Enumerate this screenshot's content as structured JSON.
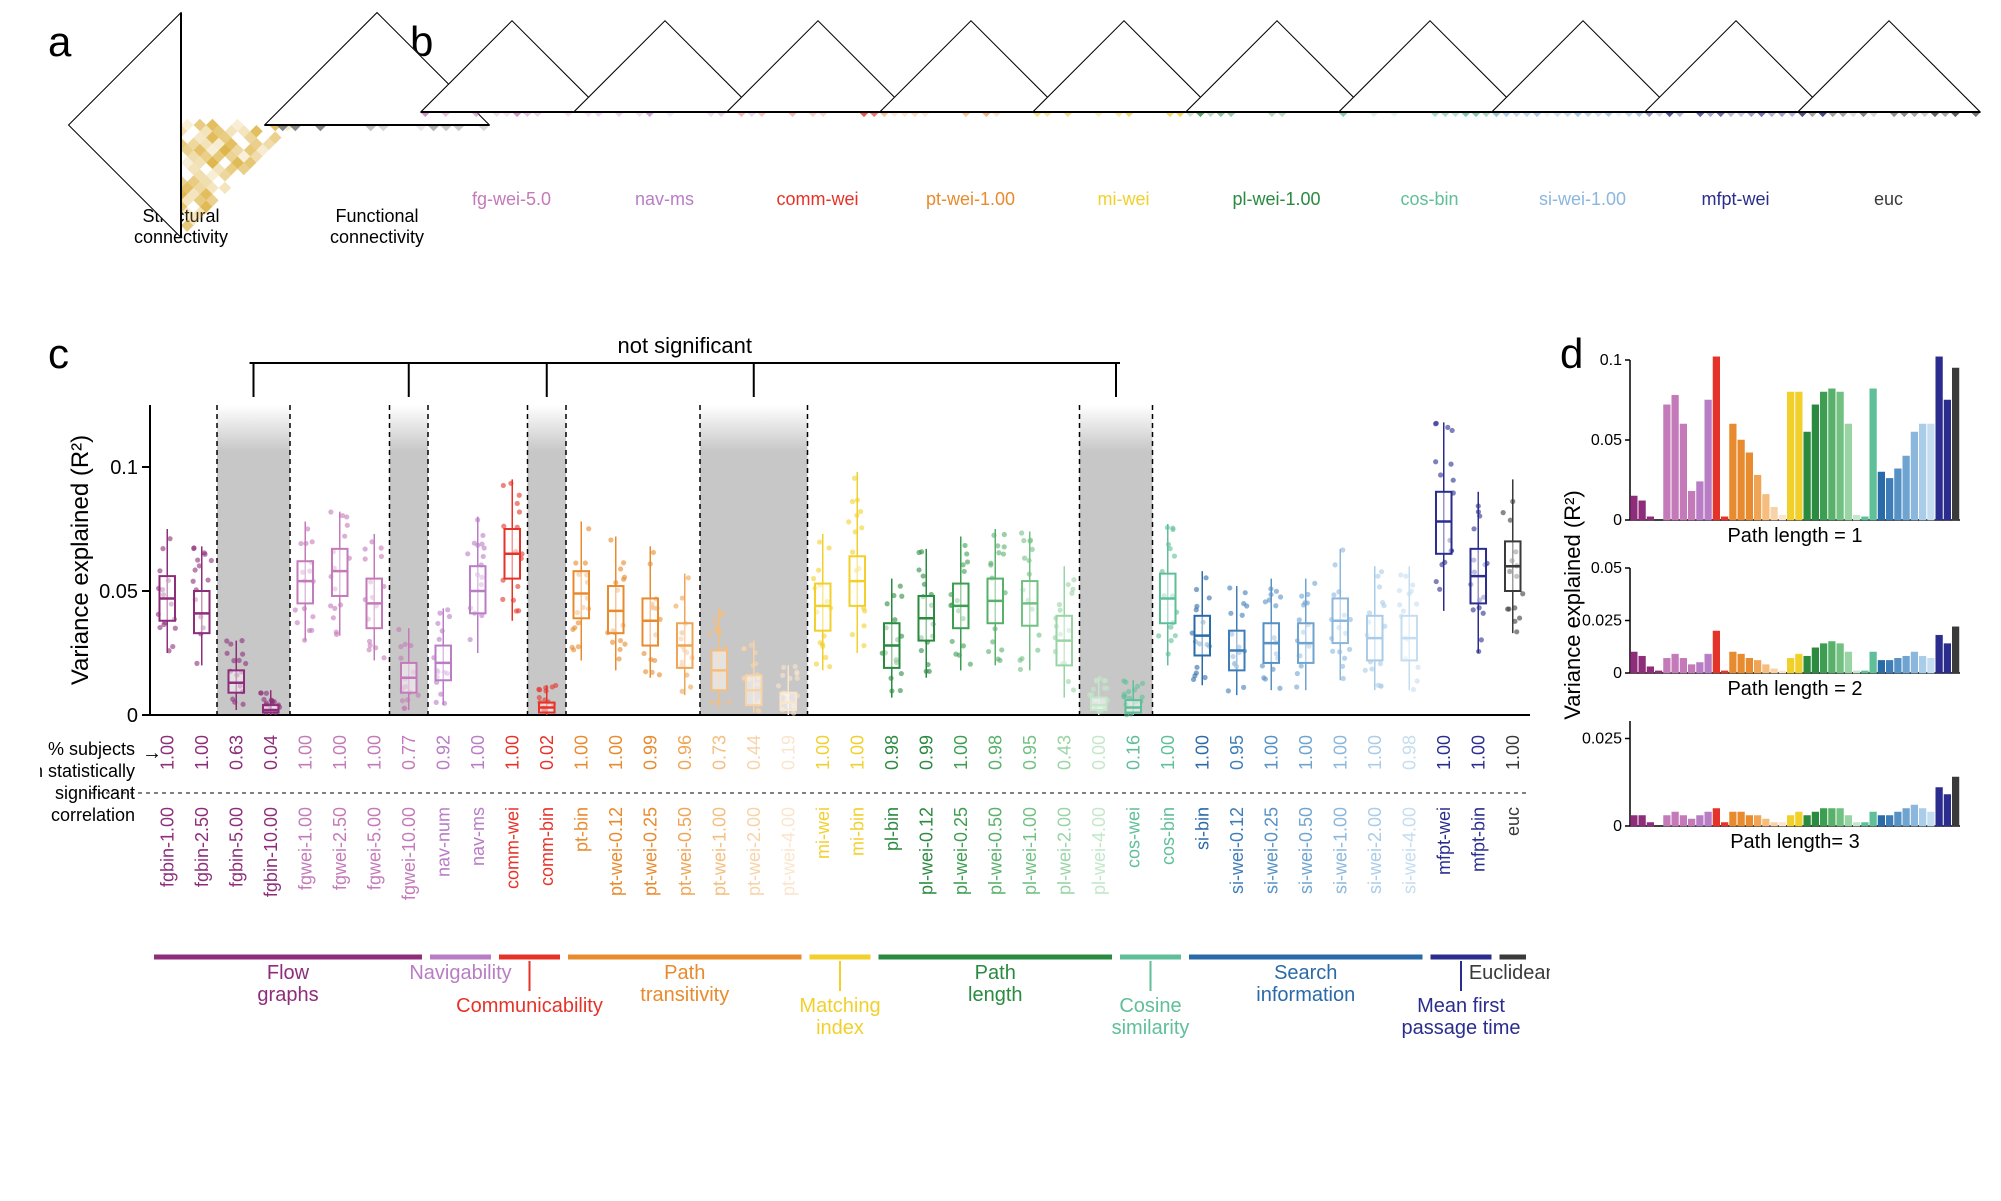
{
  "panel_labels": {
    "a": "a",
    "b": "b",
    "c": "c",
    "d": "d"
  },
  "colors": {
    "flow_graphs_dark": "#8e2d7a",
    "flow_graphs_light": "#c47ab9",
    "navigability": "#b97dc6",
    "communicability": "#e63329",
    "path_transitivity_dark": "#e88b2f",
    "path_transitivity_light": "#f5be7f",
    "matching_index": "#f2d02c",
    "path_length_dark": "#2a8a3f",
    "path_length_light": "#86c998",
    "cosine": "#5fbf98",
    "search_info_dark": "#2b6aa8",
    "search_info_light": "#8bb7dd",
    "mfpt": "#2a2d8e",
    "euclidean": "#3a3a3a",
    "structural": "#d9a829",
    "functional": "#6a6a6a",
    "grey_band": "#bdbdbd",
    "axis": "#000000",
    "bg": "#ffffff"
  },
  "a_matrices": [
    {
      "label": "Structural\nconnectivity",
      "color": "#d9a829"
    },
    {
      "label": "Functional\nconnectivity",
      "color": "#6a6a6a"
    }
  ],
  "b_matrices": [
    {
      "label": "fg-wei-5.0",
      "color": "#c47ab9"
    },
    {
      "label": "nav-ms",
      "color": "#b97dc6"
    },
    {
      "label": "comm-wei",
      "color": "#e63329"
    },
    {
      "label": "pt-wei-1.00",
      "color": "#e88b2f"
    },
    {
      "label": "mi-wei",
      "color": "#f2d02c"
    },
    {
      "label": "pl-wei-1.00",
      "color": "#2a8a3f"
    },
    {
      "label": "cos-bin",
      "color": "#5fbf98"
    },
    {
      "label": "si-wei-1.00",
      "color": "#8bb7dd"
    },
    {
      "label": "mfpt-wei",
      "color": "#2a2d8e"
    },
    {
      "label": "euc",
      "color": "#3a3a3a"
    }
  ],
  "c_chart": {
    "ylabel": "Variance explained (R²)",
    "ylim": [
      0,
      0.125
    ],
    "yticks": [
      0,
      0.05,
      0.1
    ],
    "not_sig_label": "not significant",
    "pct_label": "% subjects\nwith statistically\nsignificant\ncorrelation",
    "bars": [
      {
        "id": "fgbin-1.00",
        "pct": "1.00",
        "color": "#8e2d7a",
        "med": 0.047,
        "q1": 0.038,
        "q3": 0.056,
        "lo": 0.025,
        "hi": 0.075,
        "ns": false
      },
      {
        "id": "fgbin-2.50",
        "pct": "1.00",
        "color": "#8e2d7a",
        "med": 0.041,
        "q1": 0.033,
        "q3": 0.05,
        "lo": 0.02,
        "hi": 0.068,
        "ns": false
      },
      {
        "id": "fgbin-5.00",
        "pct": "0.63",
        "color": "#8e2d7a",
        "med": 0.013,
        "q1": 0.009,
        "q3": 0.018,
        "lo": 0.002,
        "hi": 0.03,
        "ns": true
      },
      {
        "id": "fgbin-10.00",
        "pct": "0.04",
        "color": "#8e2d7a",
        "med": 0.002,
        "q1": 0.001,
        "q3": 0.004,
        "lo": 0.0,
        "hi": 0.01,
        "ns": true
      },
      {
        "id": "fgwei-1.00",
        "pct": "1.00",
        "color": "#c47ab9",
        "med": 0.054,
        "q1": 0.045,
        "q3": 0.062,
        "lo": 0.03,
        "hi": 0.078,
        "ns": false
      },
      {
        "id": "fgwei-2.50",
        "pct": "1.00",
        "color": "#c47ab9",
        "med": 0.058,
        "q1": 0.048,
        "q3": 0.067,
        "lo": 0.032,
        "hi": 0.082,
        "ns": false
      },
      {
        "id": "fgwei-5.00",
        "pct": "1.00",
        "color": "#c47ab9",
        "med": 0.045,
        "q1": 0.035,
        "q3": 0.055,
        "lo": 0.022,
        "hi": 0.073,
        "ns": false
      },
      {
        "id": "fgwei-10.00",
        "pct": "0.77",
        "color": "#c47ab9",
        "med": 0.015,
        "q1": 0.009,
        "q3": 0.021,
        "lo": 0.002,
        "hi": 0.035,
        "ns": true
      },
      {
        "id": "nav-num",
        "pct": "0.92",
        "color": "#b97dc6",
        "med": 0.021,
        "q1": 0.014,
        "q3": 0.028,
        "lo": 0.004,
        "hi": 0.043,
        "ns": false
      },
      {
        "id": "nav-ms",
        "pct": "1.00",
        "color": "#b97dc6",
        "med": 0.05,
        "q1": 0.041,
        "q3": 0.06,
        "lo": 0.025,
        "hi": 0.08,
        "ns": false
      },
      {
        "id": "comm-wei",
        "pct": "1.00",
        "color": "#e63329",
        "med": 0.065,
        "q1": 0.055,
        "q3": 0.075,
        "lo": 0.038,
        "hi": 0.095,
        "ns": false
      },
      {
        "id": "comm-bin",
        "pct": "0.02",
        "color": "#e63329",
        "med": 0.003,
        "q1": 0.001,
        "q3": 0.005,
        "lo": 0.0,
        "hi": 0.012,
        "ns": true
      },
      {
        "id": "pt-bin",
        "pct": "1.00",
        "color": "#e88b2f",
        "med": 0.049,
        "q1": 0.039,
        "q3": 0.058,
        "lo": 0.022,
        "hi": 0.078,
        "ns": false
      },
      {
        "id": "pt-wei-0.12",
        "pct": "1.00",
        "color": "#e88b2f",
        "med": 0.042,
        "q1": 0.033,
        "q3": 0.052,
        "lo": 0.018,
        "hi": 0.072,
        "ns": false
      },
      {
        "id": "pt-wei-0.25",
        "pct": "0.99",
        "color": "#e88b2f",
        "med": 0.038,
        "q1": 0.028,
        "q3": 0.047,
        "lo": 0.015,
        "hi": 0.068,
        "ns": false
      },
      {
        "id": "pt-wei-0.50",
        "pct": "0.96",
        "color": "#f0a556",
        "med": 0.028,
        "q1": 0.019,
        "q3": 0.037,
        "lo": 0.008,
        "hi": 0.057,
        "ns": false
      },
      {
        "id": "pt-wei-1.00",
        "pct": "0.73",
        "color": "#f5be7f",
        "med": 0.018,
        "q1": 0.01,
        "q3": 0.026,
        "lo": 0.003,
        "hi": 0.043,
        "ns": true
      },
      {
        "id": "pt-wei-2.00",
        "pct": "0.44",
        "color": "#f8d3a8",
        "med": 0.01,
        "q1": 0.004,
        "q3": 0.016,
        "lo": 0.001,
        "hi": 0.03,
        "ns": true
      },
      {
        "id": "pt-wei-4.00",
        "pct": "0.19",
        "color": "#fbe5cc",
        "med": 0.005,
        "q1": 0.002,
        "q3": 0.009,
        "lo": 0.0,
        "hi": 0.02,
        "ns": true
      },
      {
        "id": "mi-wei",
        "pct": "1.00",
        "color": "#f2d02c",
        "med": 0.044,
        "q1": 0.034,
        "q3": 0.053,
        "lo": 0.018,
        "hi": 0.073,
        "ns": false
      },
      {
        "id": "mi-bin",
        "pct": "1.00",
        "color": "#f2d02c",
        "med": 0.054,
        "q1": 0.044,
        "q3": 0.064,
        "lo": 0.025,
        "hi": 0.098,
        "ns": false
      },
      {
        "id": "pl-bin",
        "pct": "0.98",
        "color": "#2a8a3f",
        "med": 0.028,
        "q1": 0.019,
        "q3": 0.037,
        "lo": 0.007,
        "hi": 0.055,
        "ns": false
      },
      {
        "id": "pl-wei-0.12",
        "pct": "0.99",
        "color": "#2a8a3f",
        "med": 0.039,
        "q1": 0.03,
        "q3": 0.048,
        "lo": 0.015,
        "hi": 0.067,
        "ns": false
      },
      {
        "id": "pl-wei-0.25",
        "pct": "1.00",
        "color": "#3d9e51",
        "med": 0.044,
        "q1": 0.035,
        "q3": 0.053,
        "lo": 0.018,
        "hi": 0.072,
        "ns": false
      },
      {
        "id": "pl-wei-0.50",
        "pct": "0.98",
        "color": "#58b06b",
        "med": 0.046,
        "q1": 0.037,
        "q3": 0.055,
        "lo": 0.02,
        "hi": 0.075,
        "ns": false
      },
      {
        "id": "pl-wei-1.00",
        "pct": "0.95",
        "color": "#72c183",
        "med": 0.045,
        "q1": 0.036,
        "q3": 0.054,
        "lo": 0.018,
        "hi": 0.074,
        "ns": false
      },
      {
        "id": "pl-wei-2.00",
        "pct": "0.43",
        "color": "#99d4a5",
        "med": 0.03,
        "q1": 0.02,
        "q3": 0.04,
        "lo": 0.007,
        "hi": 0.06,
        "ns": false
      },
      {
        "id": "pl-wei-4.00",
        "pct": "0.00",
        "color": "#c3e7c9",
        "med": 0.004,
        "q1": 0.002,
        "q3": 0.007,
        "lo": 0.0,
        "hi": 0.015,
        "ns": true
      },
      {
        "id": "cos-wei",
        "pct": "0.16",
        "color": "#5fbf98",
        "med": 0.003,
        "q1": 0.001,
        "q3": 0.006,
        "lo": 0.0,
        "hi": 0.014,
        "ns": true
      },
      {
        "id": "cos-bin",
        "pct": "1.00",
        "color": "#5fbf98",
        "med": 0.047,
        "q1": 0.037,
        "q3": 0.057,
        "lo": 0.02,
        "hi": 0.077,
        "ns": false
      },
      {
        "id": "si-bin",
        "pct": "1.00",
        "color": "#2b6aa8",
        "med": 0.032,
        "q1": 0.024,
        "q3": 0.04,
        "lo": 0.012,
        "hi": 0.058,
        "ns": false
      },
      {
        "id": "si-wei-0.12",
        "pct": "0.95",
        "color": "#3f7db8",
        "med": 0.026,
        "q1": 0.018,
        "q3": 0.034,
        "lo": 0.008,
        "hi": 0.052,
        "ns": false
      },
      {
        "id": "si-wei-0.25",
        "pct": "1.00",
        "color": "#5691c5",
        "med": 0.029,
        "q1": 0.021,
        "q3": 0.037,
        "lo": 0.01,
        "hi": 0.055,
        "ns": false
      },
      {
        "id": "si-wei-0.50",
        "pct": "1.00",
        "color": "#6fa4d0",
        "med": 0.029,
        "q1": 0.021,
        "q3": 0.037,
        "lo": 0.01,
        "hi": 0.055,
        "ns": false
      },
      {
        "id": "si-wei-1.00",
        "pct": "1.00",
        "color": "#8bb7dd",
        "med": 0.038,
        "q1": 0.029,
        "q3": 0.047,
        "lo": 0.014,
        "hi": 0.067,
        "ns": false
      },
      {
        "id": "si-wei-2.00",
        "pct": "1.00",
        "color": "#a9cce8",
        "med": 0.031,
        "q1": 0.022,
        "q3": 0.04,
        "lo": 0.01,
        "hi": 0.06,
        "ns": false
      },
      {
        "id": "si-wei-4.00",
        "pct": "0.98",
        "color": "#c4ddf0",
        "med": 0.031,
        "q1": 0.022,
        "q3": 0.04,
        "lo": 0.01,
        "hi": 0.06,
        "ns": false
      },
      {
        "id": "mfpt-wei",
        "pct": "1.00",
        "color": "#2a2d8e",
        "med": 0.078,
        "q1": 0.065,
        "q3": 0.09,
        "lo": 0.042,
        "hi": 0.118,
        "ns": false
      },
      {
        "id": "mfpt-bin",
        "pct": "1.00",
        "color": "#2a2d8e",
        "med": 0.056,
        "q1": 0.045,
        "q3": 0.067,
        "lo": 0.025,
        "hi": 0.09,
        "ns": false
      },
      {
        "id": "euc",
        "pct": "1.00",
        "color": "#3a3a3a",
        "med": 0.06,
        "q1": 0.05,
        "q3": 0.07,
        "lo": 0.033,
        "hi": 0.095,
        "ns": false
      }
    ],
    "categories": [
      {
        "label": "Flow\ngraphs",
        "start": 0,
        "end": 7,
        "color": "#8e2d7a"
      },
      {
        "label": "Navigability",
        "start": 8,
        "end": 9,
        "color": "#b97dc6"
      },
      {
        "label": "Communicability",
        "start": 10,
        "end": 11,
        "color": "#e63329",
        "below": true
      },
      {
        "label": "Path\ntransitivity",
        "start": 12,
        "end": 18,
        "color": "#e88b2f"
      },
      {
        "label": "Matching\nindex",
        "start": 19,
        "end": 20,
        "color": "#f2d02c",
        "below": true
      },
      {
        "label": "Path\nlength",
        "start": 21,
        "end": 27,
        "color": "#2a8a3f"
      },
      {
        "label": "Cosine\nsimilarity",
        "start": 28,
        "end": 29,
        "color": "#5fbf98",
        "below": true
      },
      {
        "label": "Search\ninformation",
        "start": 30,
        "end": 36,
        "color": "#2b6aa8"
      },
      {
        "label": "Mean first\npassage time",
        "start": 37,
        "end": 38,
        "color": "#2a2d8e",
        "below": true
      },
      {
        "label": "Euclidean",
        "start": 39,
        "end": 39,
        "color": "#3a3a3a"
      }
    ],
    "ns_groups": [
      {
        "start": 2,
        "end": 3
      },
      {
        "start": 7,
        "end": 7
      },
      {
        "start": 11,
        "end": 11
      },
      {
        "start": 16,
        "end": 18
      },
      {
        "start": 27,
        "end": 28
      }
    ]
  },
  "d_chart": {
    "ylabel": "Variance explained (R²)",
    "panels": [
      {
        "title": "Path length = 1",
        "ylim": [
          0,
          0.1
        ],
        "yticks": [
          0,
          0.05,
          0.1
        ],
        "values": [
          0.015,
          0.012,
          0.002,
          0,
          0.072,
          0.078,
          0.06,
          0.018,
          0.024,
          0.075,
          0.102,
          0.002,
          0.06,
          0.05,
          0.042,
          0.028,
          0.016,
          0.008,
          0.003,
          0.08,
          0.08,
          0.055,
          0.072,
          0.08,
          0.082,
          0.08,
          0.06,
          0.003,
          0.002,
          0.082,
          0.03,
          0.026,
          0.032,
          0.04,
          0.055,
          0.06,
          0.06,
          0.102,
          0.075,
          0.095
        ]
      },
      {
        "title": "Path length = 2",
        "ylim": [
          0,
          0.05
        ],
        "yticks": [
          0,
          0.025,
          0.05
        ],
        "values": [
          0.01,
          0.008,
          0.003,
          0.001,
          0.007,
          0.009,
          0.007,
          0.004,
          0.005,
          0.009,
          0.02,
          0.001,
          0.01,
          0.009,
          0.007,
          0.006,
          0.004,
          0.002,
          0.001,
          0.007,
          0.009,
          0.008,
          0.012,
          0.014,
          0.015,
          0.014,
          0.01,
          0.001,
          0.001,
          0.01,
          0.006,
          0.006,
          0.007,
          0.008,
          0.01,
          0.008,
          0.007,
          0.018,
          0.014,
          0.022
        ]
      },
      {
        "title": "Path length= 3",
        "ylim": [
          0,
          0.03
        ],
        "yticks": [
          0,
          0.025
        ],
        "values": [
          0.003,
          0.003,
          0.001,
          0.0,
          0.003,
          0.004,
          0.003,
          0.002,
          0.003,
          0.004,
          0.005,
          0.001,
          0.004,
          0.004,
          0.003,
          0.003,
          0.002,
          0.001,
          0.001,
          0.003,
          0.004,
          0.003,
          0.004,
          0.005,
          0.005,
          0.005,
          0.003,
          0.001,
          0.001,
          0.004,
          0.003,
          0.003,
          0.004,
          0.005,
          0.006,
          0.005,
          0.004,
          0.011,
          0.009,
          0.014
        ]
      }
    ]
  }
}
